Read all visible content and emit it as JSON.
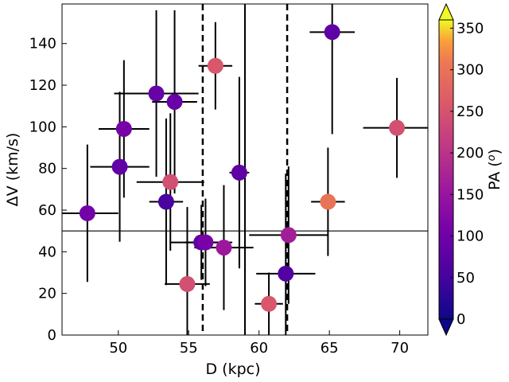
{
  "chart_data": {
    "type": "scatter",
    "xlabel": "D (kpc)",
    "ylabel": "ΔV (km/s)",
    "colorbar_label": "PA (°)",
    "colorbar_label_parts": [
      "PA (",
      "o",
      ")"
    ],
    "colormap": "plasma",
    "xlim": [
      46.0,
      72.0
    ],
    "ylim": [
      0,
      159
    ],
    "clim": [
      0,
      360
    ],
    "x_ticks": [
      50,
      55,
      60,
      65,
      70
    ],
    "y_ticks": [
      0,
      20,
      40,
      60,
      80,
      100,
      120,
      140
    ],
    "c_ticks": [
      0,
      50,
      100,
      150,
      200,
      250,
      300,
      350
    ],
    "vlines_solid": [
      59.0
    ],
    "vlines_dashed": [
      56.0,
      62.0
    ],
    "hlines_solid": [
      50.0
    ],
    "points": [
      {
        "x": 47.8,
        "y": 58.5,
        "xerr": 2.2,
        "yerr": 33,
        "pa": 105
      },
      {
        "x": 50.1,
        "y": 80.8,
        "xerr": 2.1,
        "yerr": 36,
        "pa": 85
      },
      {
        "x": 50.4,
        "y": 99.0,
        "xerr": 1.8,
        "yerr": 33,
        "pa": 110
      },
      {
        "x": 52.7,
        "y": 116.0,
        "xerr": 3.0,
        "yerr": 40,
        "pa": 90
      },
      {
        "x": 53.4,
        "y": 64.0,
        "xerr": 1.2,
        "yerr": 40,
        "pa": 55
      },
      {
        "x": 53.7,
        "y": 73.5,
        "xerr": 2.4,
        "yerr": 33,
        "pa": 245
      },
      {
        "x": 54.0,
        "y": 112.0,
        "xerr": 1.6,
        "yerr": 44,
        "pa": 95
      },
      {
        "x": 54.9,
        "y": 24.5,
        "xerr": 1.6,
        "yerr": 37,
        "pa": 245
      },
      {
        "x": 55.9,
        "y": 44.5,
        "xerr": 2.2,
        "yerr": 18,
        "pa": 80
      },
      {
        "x": 56.2,
        "y": 44.5,
        "xerr": 1.5,
        "yerr": 21,
        "pa": 110
      },
      {
        "x": 56.9,
        "y": 129.3,
        "xerr": 1.2,
        "yerr": 21,
        "pa": 255
      },
      {
        "x": 57.5,
        "y": 42.0,
        "xerr": 2.1,
        "yerr": 30,
        "pa": 155
      },
      {
        "x": 58.6,
        "y": 78.0,
        "xerr": 0.7,
        "yerr": 46,
        "pa": 80
      },
      {
        "x": 60.7,
        "y": 15.0,
        "xerr": 1.0,
        "yerr": 15,
        "pa": 255
      },
      {
        "x": 61.9,
        "y": 29.5,
        "xerr": 2.1,
        "yerr": 48,
        "pa": 65
      },
      {
        "x": 62.1,
        "y": 48.0,
        "xerr": 2.8,
        "yerr": 33,
        "pa": 165
      },
      {
        "x": 64.9,
        "y": 64.0,
        "xerr": 1.2,
        "yerr": 26,
        "pa": 300
      },
      {
        "x": 65.2,
        "y": 145.5,
        "xerr": 1.6,
        "yerr": 49,
        "pa": 80
      },
      {
        "x": 69.8,
        "y": 99.5,
        "xerr": 2.4,
        "yerr": 24,
        "pa": 245
      }
    ]
  }
}
